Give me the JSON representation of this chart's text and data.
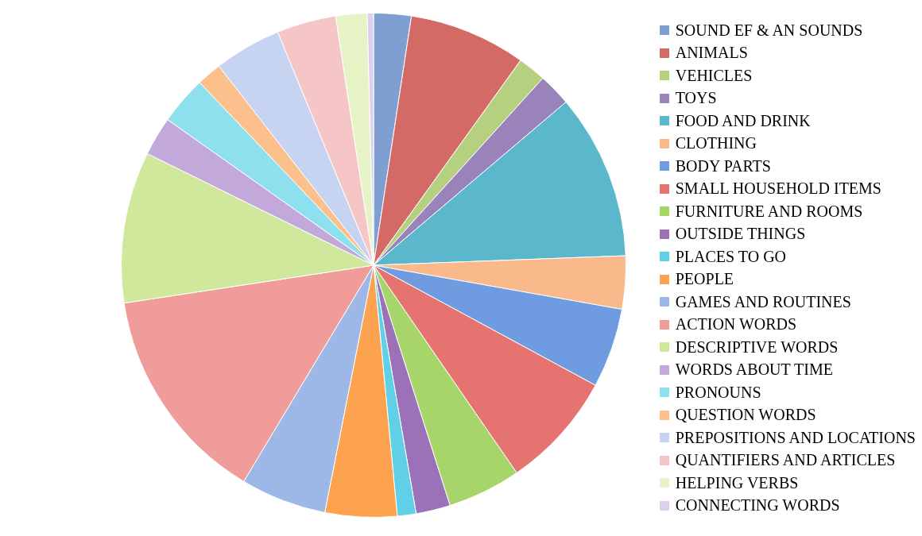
{
  "chart_data": {
    "type": "pie",
    "legend": "right",
    "categories": [
      "SOUND EF & AN SOUNDS",
      "ANIMALS",
      "VEHICLES",
      "TOYS",
      "FOOD AND DRINK",
      "CLOTHING",
      "BODY PARTS",
      "SMALL HOUSEHOLD ITEMS",
      "FURNITURE AND ROOMS",
      "OUTSIDE THINGS",
      "PLACES TO GO",
      "PEOPLE",
      "GAMES AND ROUTINES",
      "ACTION WORDS",
      "DESCRIPTIVE WORDS",
      "WORDS ABOUT TIME",
      "PRONOUNS",
      "QUESTION WORDS",
      "PREPOSITIONS AND LOCATIONS",
      "QUANTIFIERS AND ARTICLES",
      "HELPING VERBS",
      "CONNECTING WORDS"
    ],
    "values": [
      2.4,
      7.5,
      1.8,
      2.1,
      10.6,
      3.4,
      5.1,
      7.5,
      4.7,
      2.2,
      1.2,
      4.6,
      5.5,
      14.0,
      9.7,
      2.5,
      3.1,
      1.6,
      4.3,
      3.8,
      2.0,
      0.4
    ],
    "colors": [
      "#7f9fd0",
      "#d46a66",
      "#b5d07f",
      "#9a82bb",
      "#5ab7cc",
      "#f9b98a",
      "#6f9be0",
      "#e57370",
      "#a8d56a",
      "#9b72b8",
      "#5fd0e5",
      "#fda350",
      "#9db7e6",
      "#ef9c9b",
      "#cfe89b",
      "#c3a8dc",
      "#8fe0ee",
      "#fcc08c",
      "#c6d4f2",
      "#f6c6c6",
      "#e6f3c6",
      "#ddd0ee"
    ]
  }
}
